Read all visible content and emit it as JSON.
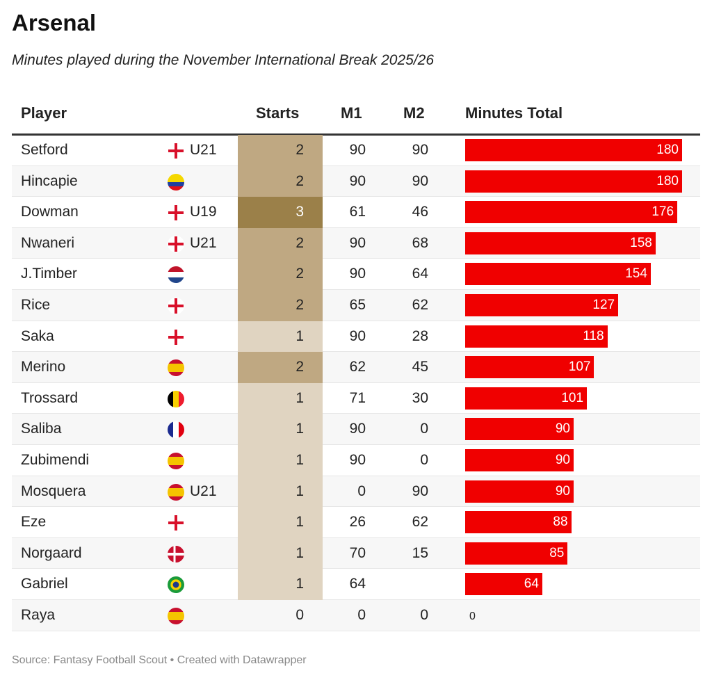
{
  "title": "Arsenal",
  "subtitle": "Minutes played during the November International Break 2025/26",
  "source": "Source: Fantasy Football Scout • Created with Datawrapper",
  "colors": {
    "bar": "#f00000",
    "starts_1": "#e0d4c1",
    "starts_2": "#bfa882",
    "starts_3": "#9b8049"
  },
  "chart_data": {
    "type": "table",
    "columns": [
      "Player",
      "Starts",
      "M1",
      "M2",
      "Minutes Total"
    ],
    "bar_max": 180,
    "rows": [
      {
        "player": "Setford",
        "flag": "england",
        "tag": "U21",
        "starts": "2",
        "m1": "90",
        "m2": "90",
        "total": 180
      },
      {
        "player": "Hincapie",
        "flag": "ecuador",
        "tag": "",
        "starts": "2",
        "m1": "90",
        "m2": "90",
        "total": 180
      },
      {
        "player": "Dowman",
        "flag": "england",
        "tag": "U19",
        "starts": "3",
        "m1": "61",
        "m2": "46",
        "total": 176
      },
      {
        "player": "Nwaneri",
        "flag": "england",
        "tag": "U21",
        "starts": "2",
        "m1": "90",
        "m2": "68",
        "total": 158
      },
      {
        "player": "J.Timber",
        "flag": "netherlands",
        "tag": "",
        "starts": "2",
        "m1": "90",
        "m2": "64",
        "total": 154
      },
      {
        "player": "Rice",
        "flag": "england",
        "tag": "",
        "starts": "2",
        "m1": "65",
        "m2": "62",
        "total": 127
      },
      {
        "player": "Saka",
        "flag": "england",
        "tag": "",
        "starts": "1",
        "m1": "90",
        "m2": "28",
        "total": 118
      },
      {
        "player": "Merino",
        "flag": "spain",
        "tag": "",
        "starts": "2",
        "m1": "62",
        "m2": "45",
        "total": 107
      },
      {
        "player": "Trossard",
        "flag": "belgium",
        "tag": "",
        "starts": "1",
        "m1": "71",
        "m2": "30",
        "total": 101
      },
      {
        "player": "Saliba",
        "flag": "france",
        "tag": "",
        "starts": "1",
        "m1": "90",
        "m2": "0",
        "total": 90
      },
      {
        "player": "Zubimendi",
        "flag": "spain",
        "tag": "",
        "starts": "1",
        "m1": "90",
        "m2": "0",
        "total": 90
      },
      {
        "player": "Mosquera",
        "flag": "spain",
        "tag": "U21",
        "starts": "1",
        "m1": "0",
        "m2": "90",
        "total": 90
      },
      {
        "player": "Eze",
        "flag": "england",
        "tag": "",
        "starts": "1",
        "m1": "26",
        "m2": "62",
        "total": 88
      },
      {
        "player": "Norgaard",
        "flag": "denmark",
        "tag": "",
        "starts": "1",
        "m1": "70",
        "m2": "15",
        "total": 85
      },
      {
        "player": "Gabriel",
        "flag": "brazil",
        "tag": "",
        "starts": "1",
        "m1": "64",
        "m2": "",
        "total": 64
      },
      {
        "player": "Raya",
        "flag": "spain",
        "tag": "",
        "starts": "0",
        "m1": "0",
        "m2": "0",
        "total": 0
      }
    ]
  }
}
